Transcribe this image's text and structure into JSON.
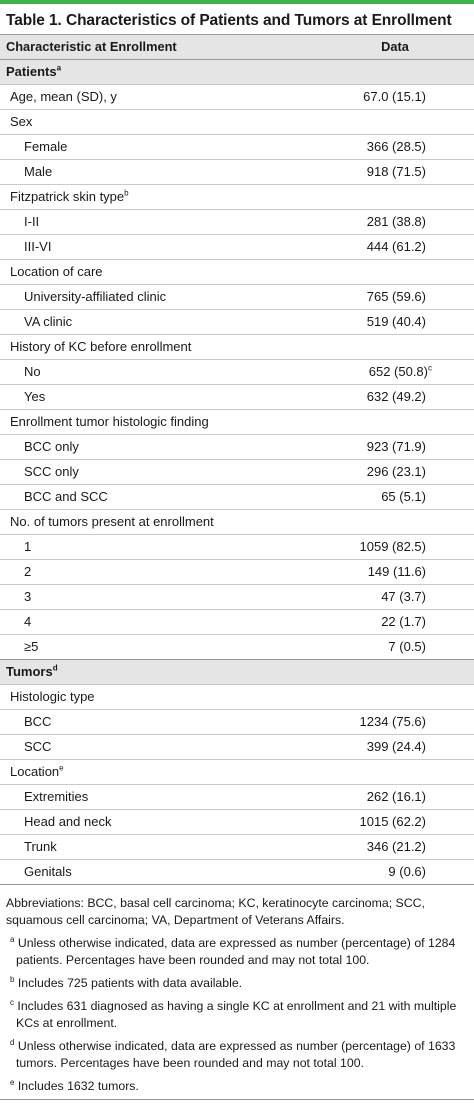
{
  "title": "Table 1. Characteristics of Patients and Tumors at Enrollment",
  "colors": {
    "accent_bar": "#3db54a",
    "header_bg": "#e5e5e5"
  },
  "header": {
    "col1": "Characteristic at Enrollment",
    "col2": "Data"
  },
  "patients_label": "Patients",
  "patients_sup": "a",
  "age": {
    "label": "Age, mean (SD), y",
    "value": "67.0 (15.1)"
  },
  "sex": {
    "label": "Sex",
    "rows": [
      {
        "label": "Female",
        "value": "366 (28.5)"
      },
      {
        "label": "Male",
        "value": "918 (71.5)"
      }
    ]
  },
  "skin": {
    "label": "Fitzpatrick skin type",
    "sup": "b",
    "rows": [
      {
        "label": "I-II",
        "value": "281 (38.8)"
      },
      {
        "label": "III-VI",
        "value": "444 (61.2)"
      }
    ]
  },
  "location_care": {
    "label": "Location of care",
    "rows": [
      {
        "label": "University-affiliated clinic",
        "value": "765 (59.6)"
      },
      {
        "label": "VA clinic",
        "value": "519 (40.4)"
      }
    ]
  },
  "history": {
    "label": "History of KC before enrollment",
    "rows": [
      {
        "label": "No",
        "value": "652 (50.8)",
        "sup": "c"
      },
      {
        "label": "Yes",
        "value": "632 (49.2)"
      }
    ]
  },
  "histo_finding": {
    "label": "Enrollment tumor histologic finding",
    "rows": [
      {
        "label": "BCC only",
        "value": "923 (71.9)"
      },
      {
        "label": "SCC only",
        "value": "296 (23.1)"
      },
      {
        "label": "BCC and SCC",
        "value": "65 (5.1)"
      }
    ]
  },
  "num_tumors": {
    "label": "No. of tumors present at enrollment",
    "rows": [
      {
        "label": "1",
        "value": "1059 (82.5)"
      },
      {
        "label": "2",
        "value": "149 (11.6)"
      },
      {
        "label": "3",
        "value": "47 (3.7)"
      },
      {
        "label": "4",
        "value": "22 (1.7)"
      },
      {
        "label": "≥5",
        "value": "7 (0.5)"
      }
    ]
  },
  "tumors_label": "Tumors",
  "tumors_sup": "d",
  "histo_type": {
    "label": "Histologic type",
    "rows": [
      {
        "label": "BCC",
        "value": "1234 (75.6)"
      },
      {
        "label": "SCC",
        "value": "399 (24.4)"
      }
    ]
  },
  "location": {
    "label": "Location",
    "sup": "e",
    "rows": [
      {
        "label": "Extremities",
        "value": "262 (16.1)"
      },
      {
        "label": "Head and neck",
        "value": "1015 (62.2)"
      },
      {
        "label": "Trunk",
        "value": "346 (21.2)"
      },
      {
        "label": "Genitals",
        "value": "9 (0.6)"
      }
    ]
  },
  "footnotes": {
    "abbrev": "Abbreviations: BCC, basal cell carcinoma; KC, keratinocyte carcinoma; SCC, squamous cell carcinoma; VA, Department of Veterans Affairs.",
    "a_mark": "a",
    "a": "Unless otherwise indicated, data are expressed as number (percentage) of 1284 patients. Percentages have been rounded and may not total 100.",
    "b_mark": "b",
    "b": "Includes 725 patients with data available.",
    "c_mark": "c",
    "c": "Includes 631 diagnosed as having a single KC at enrollment and 21 with multiple KCs at enrollment.",
    "d_mark": "d",
    "d": "Unless otherwise indicated, data are expressed as number (percentage) of 1633 tumors. Percentages have been rounded and may not total 100.",
    "e_mark": "e",
    "e": "Includes 1632 tumors."
  }
}
